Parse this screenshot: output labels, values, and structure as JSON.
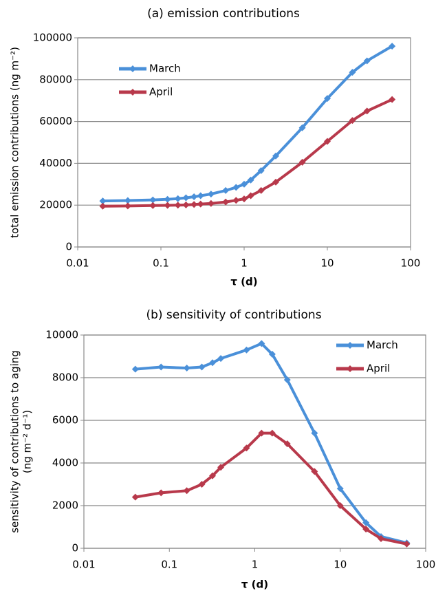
{
  "chart_data": [
    {
      "type": "line",
      "title": "(a) emission contributions",
      "xlabel": "τ (d)",
      "ylabel": [
        "total emission contributions (ng m⁻²)"
      ],
      "xscale": "log",
      "xlim": [
        0.01,
        100
      ],
      "xticks": [
        0.01,
        0.1,
        1,
        10,
        100
      ],
      "ylim": [
        0,
        100000
      ],
      "yticks": [
        0,
        20000,
        40000,
        60000,
        80000,
        100000
      ],
      "grid": true,
      "legend": "upper left",
      "x": [
        0.02,
        0.04,
        0.08,
        0.12,
        0.16,
        0.2,
        0.25,
        0.3,
        0.4,
        0.6,
        0.8,
        1,
        1.2,
        1.6,
        2.4,
        5,
        10,
        20,
        30,
        60
      ],
      "series": [
        {
          "name": "March",
          "color": "#4a90d9",
          "values": [
            22000,
            22200,
            22500,
            22800,
            23100,
            23500,
            24000,
            24500,
            25300,
            27000,
            28500,
            30000,
            32000,
            36500,
            43500,
            57000,
            71000,
            83500,
            89000,
            96000
          ]
        },
        {
          "name": "April",
          "color": "#b8394b",
          "values": [
            19500,
            19600,
            19800,
            19900,
            20000,
            20100,
            20300,
            20500,
            20800,
            21500,
            22300,
            23000,
            24500,
            27000,
            31000,
            40500,
            50500,
            60500,
            65000,
            70500
          ]
        }
      ]
    },
    {
      "type": "line",
      "title": "(b) sensitivity of  contributions",
      "xlabel": "τ (d)",
      "ylabel": [
        "sensitivity of contributions to aging",
        "(ng m⁻² d⁻¹)"
      ],
      "xscale": "log",
      "xlim": [
        0.01,
        100
      ],
      "xticks": [
        0.01,
        0.1,
        1,
        10,
        100
      ],
      "ylim": [
        0,
        10000
      ],
      "yticks": [
        0,
        2000,
        4000,
        6000,
        8000,
        10000
      ],
      "grid": true,
      "legend": "upper right",
      "x": [
        0.04,
        0.08,
        0.16,
        0.24,
        0.32,
        0.4,
        0.8,
        1.2,
        1.6,
        2.4,
        5,
        10,
        20,
        30,
        60
      ],
      "series": [
        {
          "name": "March",
          "color": "#4a90d9",
          "values": [
            8400,
            8500,
            8450,
            8500,
            8700,
            8900,
            9300,
            9600,
            9100,
            7900,
            5400,
            2800,
            1200,
            550,
            250
          ]
        },
        {
          "name": "April",
          "color": "#b8394b",
          "values": [
            2400,
            2600,
            2700,
            3000,
            3400,
            3800,
            4700,
            5400,
            5400,
            4900,
            3600,
            2000,
            900,
            450,
            200
          ]
        }
      ]
    }
  ]
}
